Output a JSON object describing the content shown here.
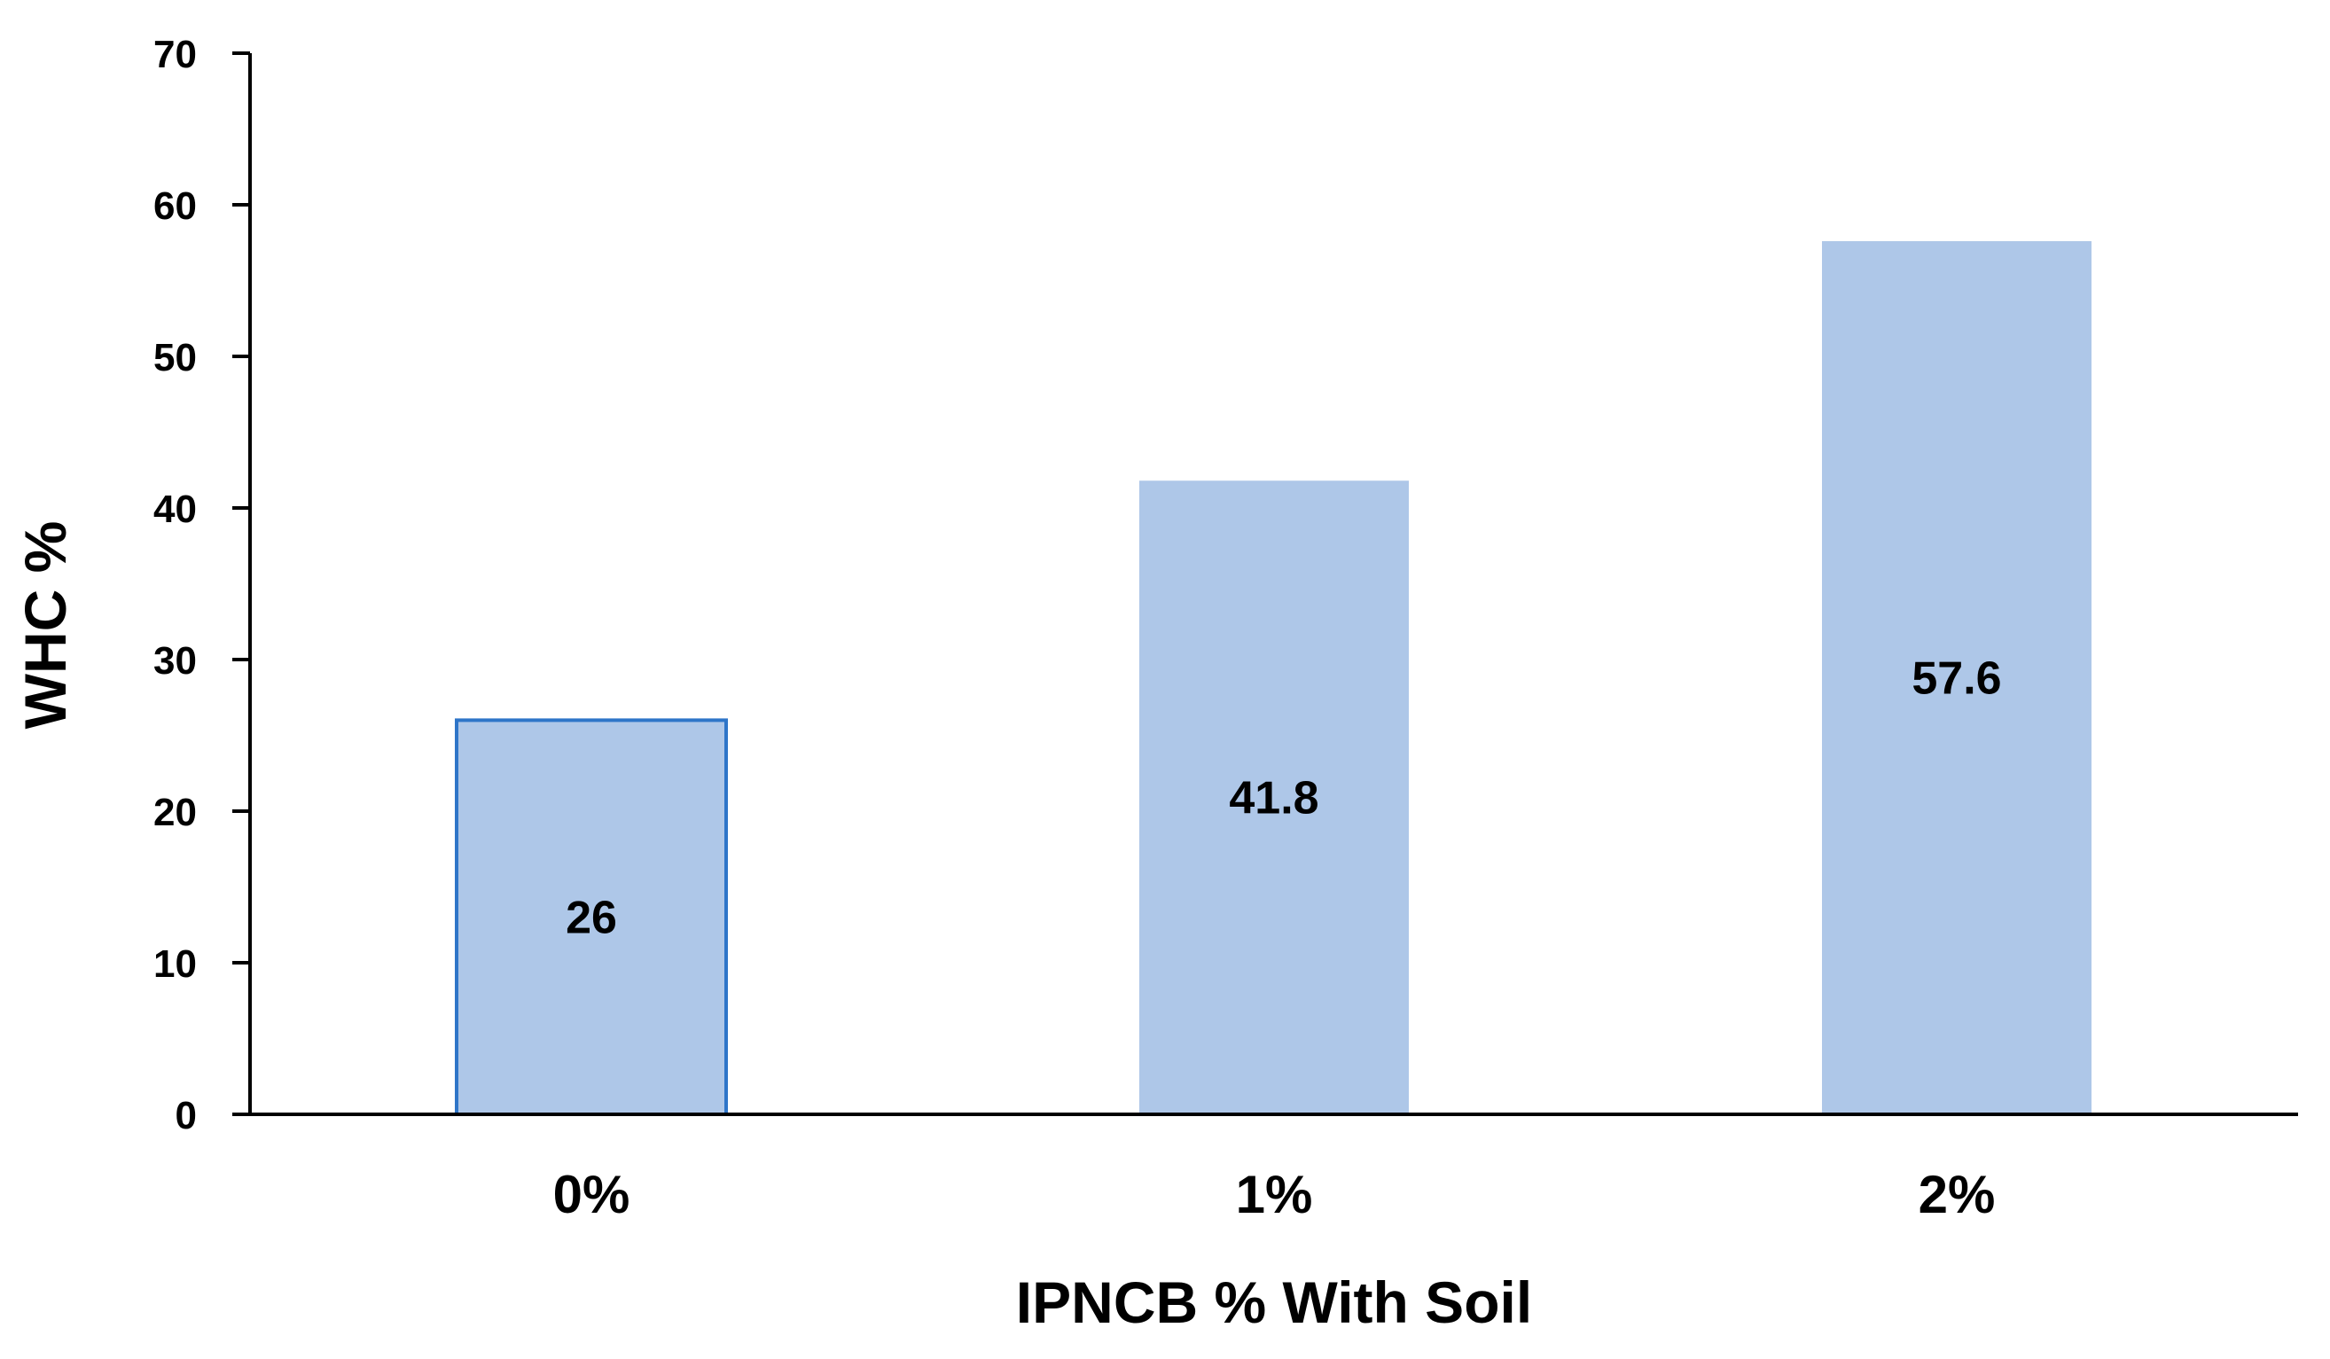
{
  "chart_data": {
    "type": "bar",
    "categories": [
      "0%",
      "1%",
      "2%"
    ],
    "values": [
      26,
      41.8,
      57.6
    ],
    "data_labels": [
      "26",
      "41.8",
      "57.6"
    ],
    "title": "",
    "xlabel": "IPNCB % With Soil",
    "ylabel": "WHC %",
    "ylim": [
      0,
      70
    ],
    "yticks": [
      0,
      10,
      20,
      30,
      40,
      50,
      60,
      70
    ],
    "ytick_labels": [
      "0",
      "10",
      "20",
      "30",
      "40",
      "50",
      "60",
      "70"
    ],
    "grid": false,
    "legend": "none",
    "colors": {
      "bar_fill": "#aec7e8",
      "highlight_outline": "#2e75c8",
      "axis": "#000000"
    },
    "highlighted_category": "0%"
  }
}
